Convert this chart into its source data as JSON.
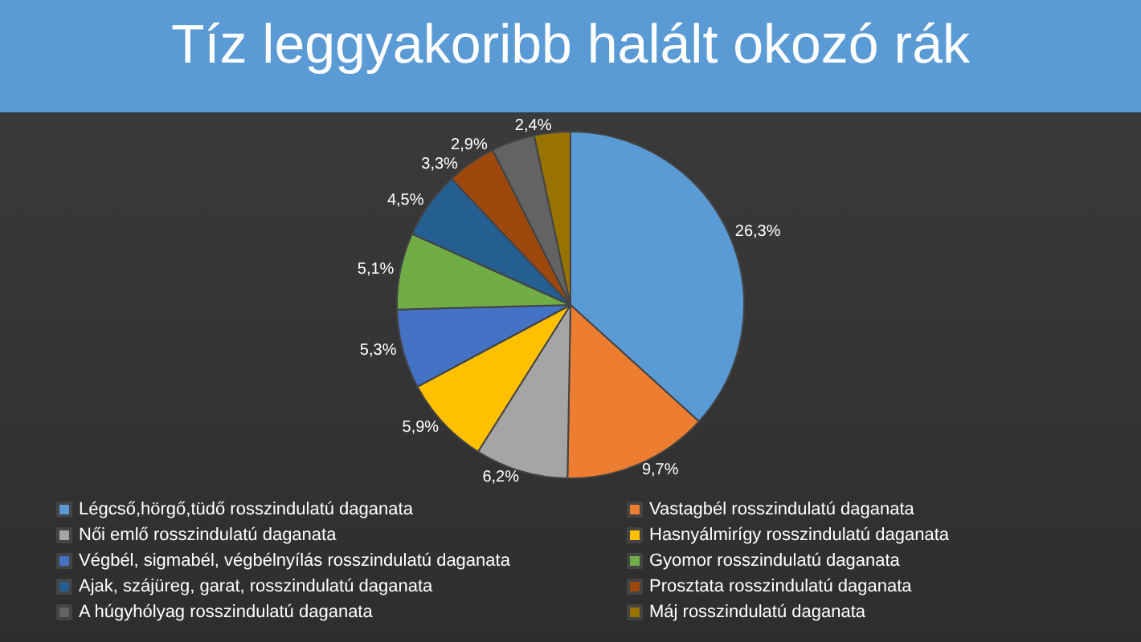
{
  "chart_data": {
    "type": "pie",
    "title": "Tíz leggyakoribb halált okozó rák",
    "categories": [
      "Légcső,hörgő,tüdő rosszindulatú daganata",
      "Vastagbél rosszindulatú daganata",
      "Női emlő rosszindulatú daganata",
      "Hasnyálmirígy rosszindulatú daganata",
      "Végbél, sigmabél, végbélnyílás rosszindulatú daganata",
      "Gyomor rosszindulatú daganata",
      "Ajak, szájüreg, garat, rosszindulatú daganata",
      "Prosztata rosszindulatú daganata",
      "A húgyhólyag rosszindulatú daganata",
      "Máj rosszindulatú daganata"
    ],
    "values": [
      26.3,
      9.7,
      6.2,
      5.9,
      5.3,
      5.1,
      4.5,
      3.3,
      2.9,
      2.4
    ],
    "value_labels": [
      "26,3%",
      "9,7%",
      "6,2%",
      "5,9%",
      "5,3%",
      "5,1%",
      "4,5%",
      "3,3%",
      "2,9%",
      "2,4%"
    ],
    "colors": [
      "#5b9bd5",
      "#ed7d31",
      "#a5a5a5",
      "#ffc000",
      "#4472c4",
      "#70ad47",
      "#255e91",
      "#9e480e",
      "#636363",
      "#997300"
    ],
    "legend": "bottom"
  }
}
